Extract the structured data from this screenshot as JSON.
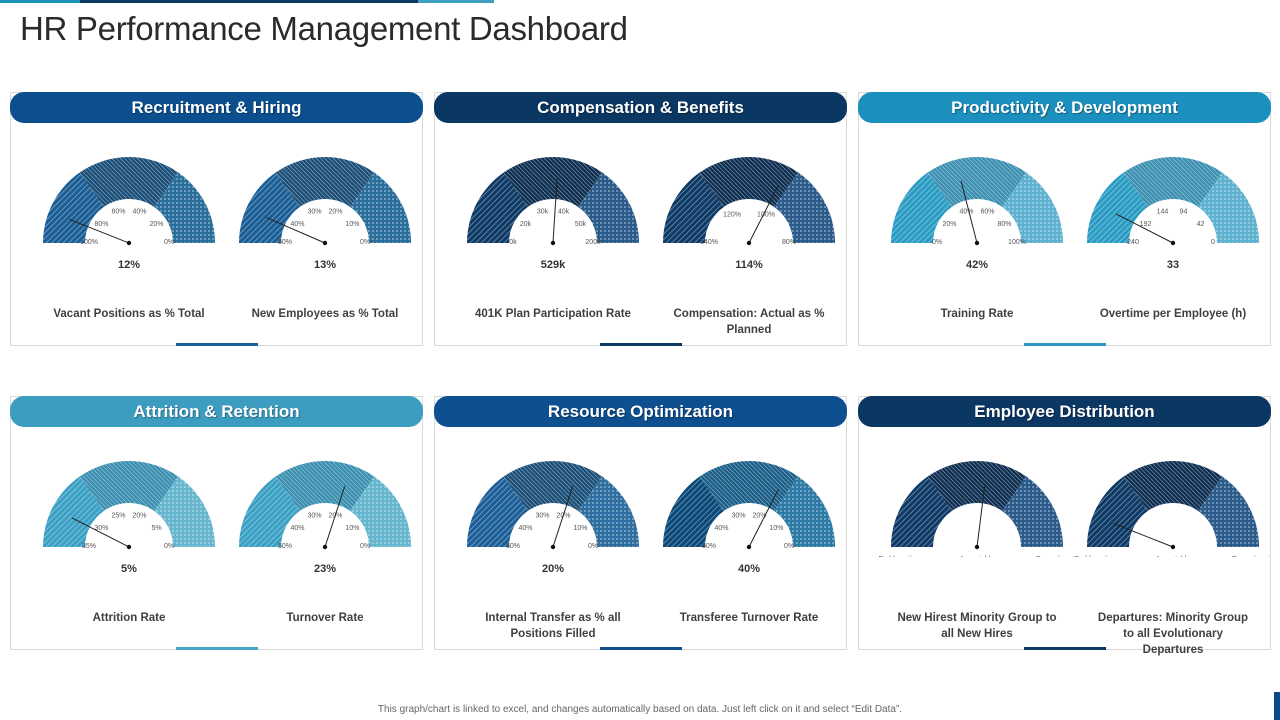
{
  "page": {
    "title": "HR Performance Management Dashboard"
  },
  "footer": {
    "note": "This graph/chart is linked to excel, and changes automatically based on data. Just left click on it and select “Edit Data”."
  },
  "colors": {
    "dark_navy": "#0b3763",
    "navy": "#0d4f8f",
    "blue": "#1f6aa8",
    "teal": "#1d93b9",
    "light_teal": "#3f9fbf",
    "mid_teal": "#2e8fb0"
  },
  "panels": [
    {
      "title": "Recruitment & Hiring",
      "header_color": "#0b4f8f",
      "underline_color": "#1a5f99",
      "gauges": [
        {
          "value_text": "12%",
          "label": "Vacant Positions as % Total",
          "level": 0.12,
          "ticks": [
            "100%",
            "80%",
            "60%",
            "40%",
            "20%",
            "0%"
          ],
          "colors": [
            "#1a5e95",
            "#1b4f78",
            "#2a6f9c"
          ]
        },
        {
          "value_text": "13%",
          "label": "New Employees as % Total",
          "level": 0.13,
          "ticks": [
            "50%",
            "40%",
            "30%",
            "20%",
            "10%",
            "0%"
          ],
          "colors": [
            "#1a5e95",
            "#1b4f78",
            "#2a6f9c"
          ]
        }
      ]
    },
    {
      "title": "Compensation & Benefits",
      "header_color": "#0b3763",
      "underline_color": "#0b3763",
      "gauges": [
        {
          "value_text": "529k",
          "label": "401K Plan Participation Rate",
          "level": 0.52,
          "ticks": [
            "0k",
            "20k",
            "30k",
            "40k",
            "50k",
            "200k"
          ],
          "colors": [
            "#0e3a66",
            "#0e2f52",
            "#2a5b8a"
          ]
        },
        {
          "value_text": "114%",
          "label": "Compensation: Actual as % Planned",
          "level": 0.65,
          "ticks": [
            "140%",
            "120%",
            "100%",
            "80%"
          ],
          "colors": [
            "#0e3a66",
            "#0e2f52",
            "#2a5b8a"
          ]
        }
      ]
    },
    {
      "title": "Productivity & Development",
      "header_color": "#1b8fbd",
      "underline_color": "#2b96c4",
      "gauges": [
        {
          "value_text": "42%",
          "label": "Training Rate",
          "level": 0.42,
          "ticks": [
            "0%",
            "20%",
            "40%",
            "60%",
            "80%",
            "100%"
          ],
          "colors": [
            "#2a9cc4",
            "#3b8fb0",
            "#5fb2cf"
          ]
        },
        {
          "value_text": "33",
          "label": "Overtime per Employee (h)",
          "level": 0.15,
          "ticks": [
            "240",
            "192",
            "144",
            "94",
            "42",
            "0"
          ],
          "colors": [
            "#2a9cc4",
            "#3b8fb0",
            "#5fb2cf"
          ]
        }
      ]
    },
    {
      "title": "Attrition & Retention",
      "header_color": "#3d9dc0",
      "underline_color": "#4aa6c6",
      "gauges": [
        {
          "value_text": "5%",
          "label": "Attrition Rate",
          "level": 0.15,
          "ticks": [
            "35%",
            "30%",
            "25%",
            "20%",
            "5%",
            "0%"
          ],
          "colors": [
            "#3aa0c4",
            "#3a8fb0",
            "#66b6d0"
          ]
        },
        {
          "value_text": "23%",
          "label": "Turnover Rate",
          "level": 0.6,
          "ticks": [
            "50%",
            "40%",
            "30%",
            "20%",
            "10%",
            "0%"
          ],
          "colors": [
            "#3aa0c4",
            "#3a8fb0",
            "#66b6d0"
          ]
        }
      ]
    },
    {
      "title": "Resource Optimization",
      "header_color": "#0e4f8f",
      "underline_color": "#0e4f8f",
      "gauges": [
        {
          "value_text": "20%",
          "label": "Internal Transfer as % all Positions Filled",
          "level": 0.6,
          "ticks": [
            "50%",
            "40%",
            "30%",
            "20%",
            "10%",
            "0%"
          ],
          "colors": [
            "#1c5f98",
            "#1b4f78",
            "#2e6ea0"
          ]
        },
        {
          "value_text": "40%",
          "label": "Transferee Turnover Rate",
          "level": 0.65,
          "ticks": [
            "50%",
            "40%",
            "30%",
            "20%",
            "10%",
            "0%"
          ],
          "colors": [
            "#0b4a78",
            "#1b5f88",
            "#2e7aa6"
          ]
        }
      ]
    },
    {
      "title": "Employee Distribution",
      "header_color": "#0b3763",
      "underline_color": "#0b3763",
      "gauges": [
        {
          "value_text": "",
          "label": "New Hirest Minority Group to all New Hires",
          "level": 0.54,
          "ticks": [
            "Problematic",
            "Acceptable",
            "Proportionate"
          ],
          "colors": [
            "#0e3a66",
            "#0e2f52",
            "#2a5b8a"
          ]
        },
        {
          "value_text": "",
          "label": "Departures: Minority Group to all Evolutionary Departures",
          "level": 0.12,
          "ticks": [
            "Problematic",
            "Acceptable",
            "Proportionate"
          ],
          "colors": [
            "#0e3a66",
            "#0e2f52",
            "#2a5b8a"
          ]
        }
      ]
    }
  ]
}
